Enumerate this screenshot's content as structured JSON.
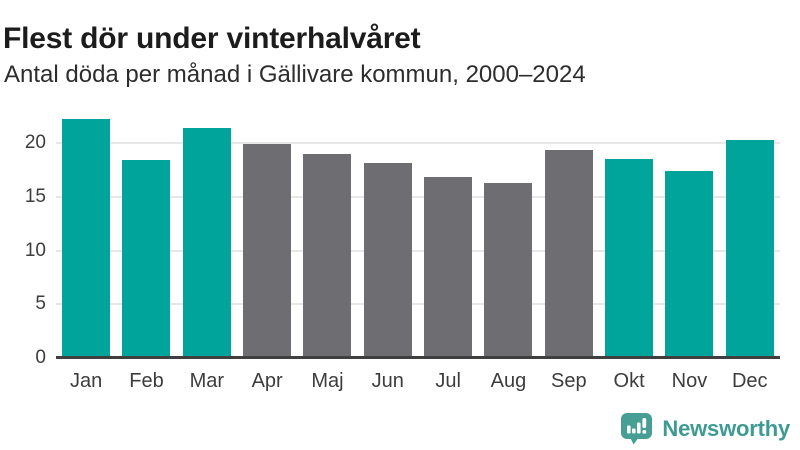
{
  "header": {
    "title": "Flest dör under vinterhalvåret",
    "subtitle": "Antal döda per månad i Gällivare kommun, 2000–2024"
  },
  "chart_data": {
    "type": "bar",
    "title": "Flest dör under vinterhalvåret",
    "subtitle": "Antal döda per månad i Gällivare kommun, 2000–2024",
    "categories": [
      "Jan",
      "Feb",
      "Mar",
      "Apr",
      "Maj",
      "Jun",
      "Jul",
      "Aug",
      "Sep",
      "Okt",
      "Nov",
      "Dec"
    ],
    "values": [
      22.3,
      18.4,
      21.4,
      19.9,
      19.0,
      18.2,
      16.9,
      16.3,
      19.4,
      18.5,
      17.4,
      20.3
    ],
    "highlighted_categories": [
      "Jan",
      "Feb",
      "Mar",
      "Okt",
      "Nov",
      "Dec"
    ],
    "bar_color_keys": [
      "highlight",
      "highlight",
      "highlight",
      "base",
      "base",
      "base",
      "base",
      "base",
      "base",
      "highlight",
      "highlight",
      "highlight"
    ],
    "xlabel": "",
    "ylabel": "",
    "yticks": [
      0,
      5,
      10,
      15,
      20
    ],
    "ylim": [
      0,
      23.1
    ],
    "grid": true,
    "legend": false,
    "colors": {
      "highlight": "#00a49b",
      "base": "#6d6d72",
      "gridline": "#e7e7e7",
      "axis_line": "#3f3f3f",
      "axis_text": "#3d3d3d"
    }
  },
  "footer": {
    "brand": "Newsworthy",
    "brand_color": "#3e9b92"
  }
}
